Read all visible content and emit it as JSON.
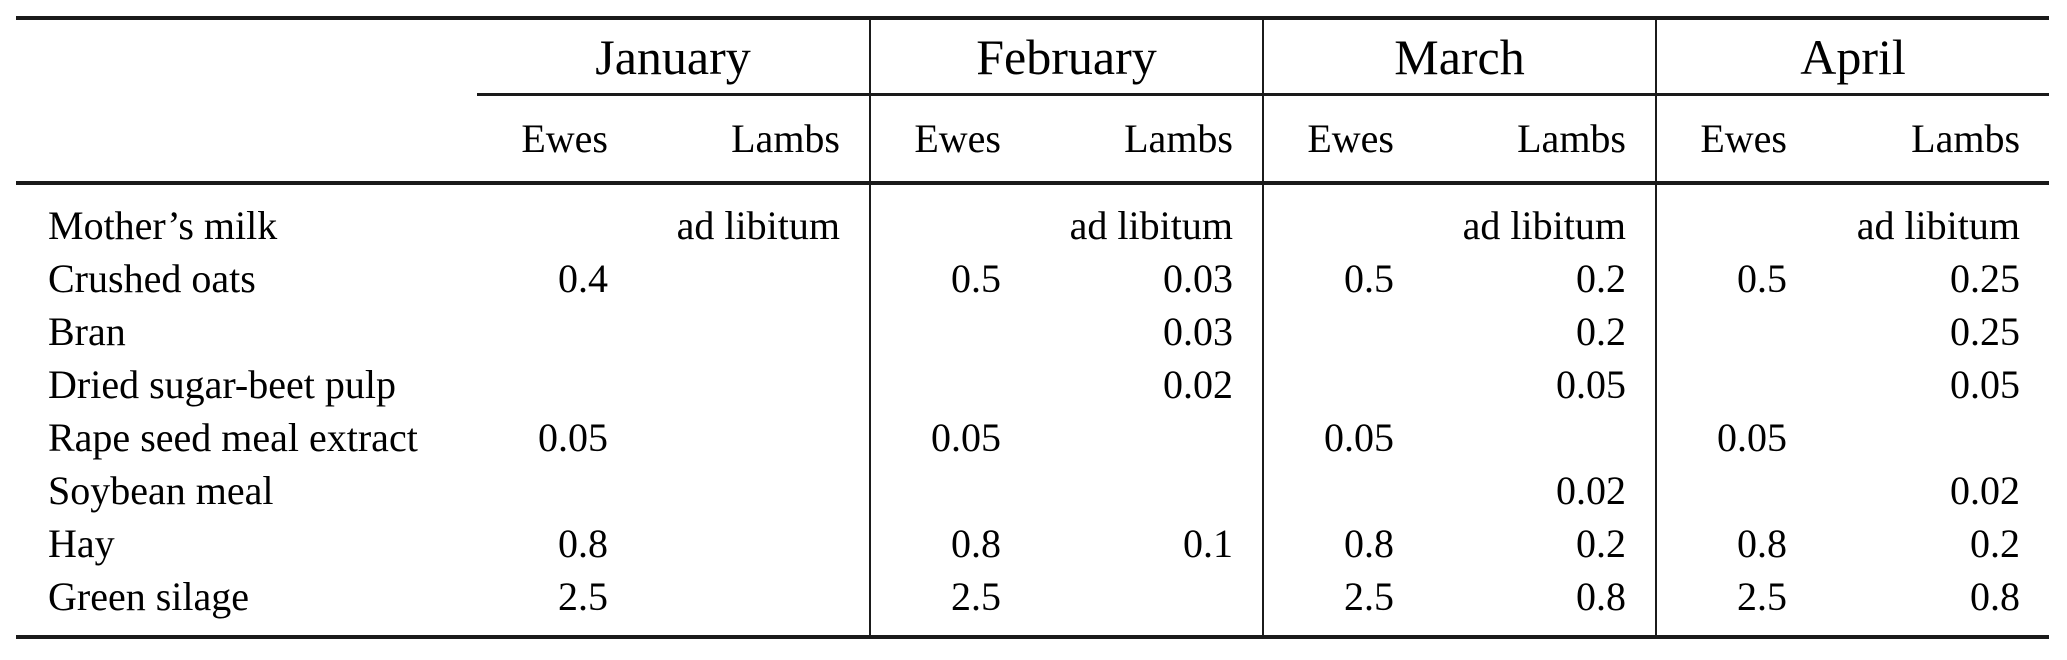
{
  "page": {
    "background": "#ffffff",
    "text_color": "#000000",
    "rule_color": "#1a1a1a"
  },
  "table": {
    "months": [
      "January",
      "February",
      "March",
      "April"
    ],
    "sub_headers": [
      "Ewes",
      "Lambs"
    ],
    "ad_libitum_row": {
      "label": "Mother’s milk",
      "values": [
        "ad libitum",
        "ad libitum",
        "ad libitum",
        "ad libitum"
      ]
    },
    "rows": [
      {
        "label": "Crushed oats",
        "cells": [
          "0.4",
          "",
          "0.5",
          "0.03",
          "0.5",
          "0.2",
          "0.5",
          "0.25"
        ]
      },
      {
        "label": "Bran",
        "cells": [
          "",
          "",
          "",
          "0.03",
          "",
          "0.2",
          "",
          "0.25"
        ]
      },
      {
        "label": "Dried sugar-beet pulp",
        "cells": [
          "",
          "",
          "",
          "0.02",
          "",
          "0.05",
          "",
          "0.05"
        ]
      },
      {
        "label": "Rape seed meal extract",
        "cells": [
          "0.05",
          "",
          "0.05",
          "",
          "0.05",
          "",
          "0.05",
          ""
        ]
      },
      {
        "label": "Soybean meal",
        "cells": [
          "",
          "",
          "",
          "",
          "",
          "0.02",
          "",
          "0.02"
        ]
      },
      {
        "label": "Hay",
        "cells": [
          "0.8",
          "",
          "0.8",
          "0.1",
          "0.8",
          "0.2",
          "0.8",
          "0.2"
        ]
      },
      {
        "label": "Green silage",
        "cells": [
          "2.5",
          "",
          "2.5",
          "",
          "2.5",
          "0.8",
          "2.5",
          "0.8"
        ]
      }
    ]
  }
}
